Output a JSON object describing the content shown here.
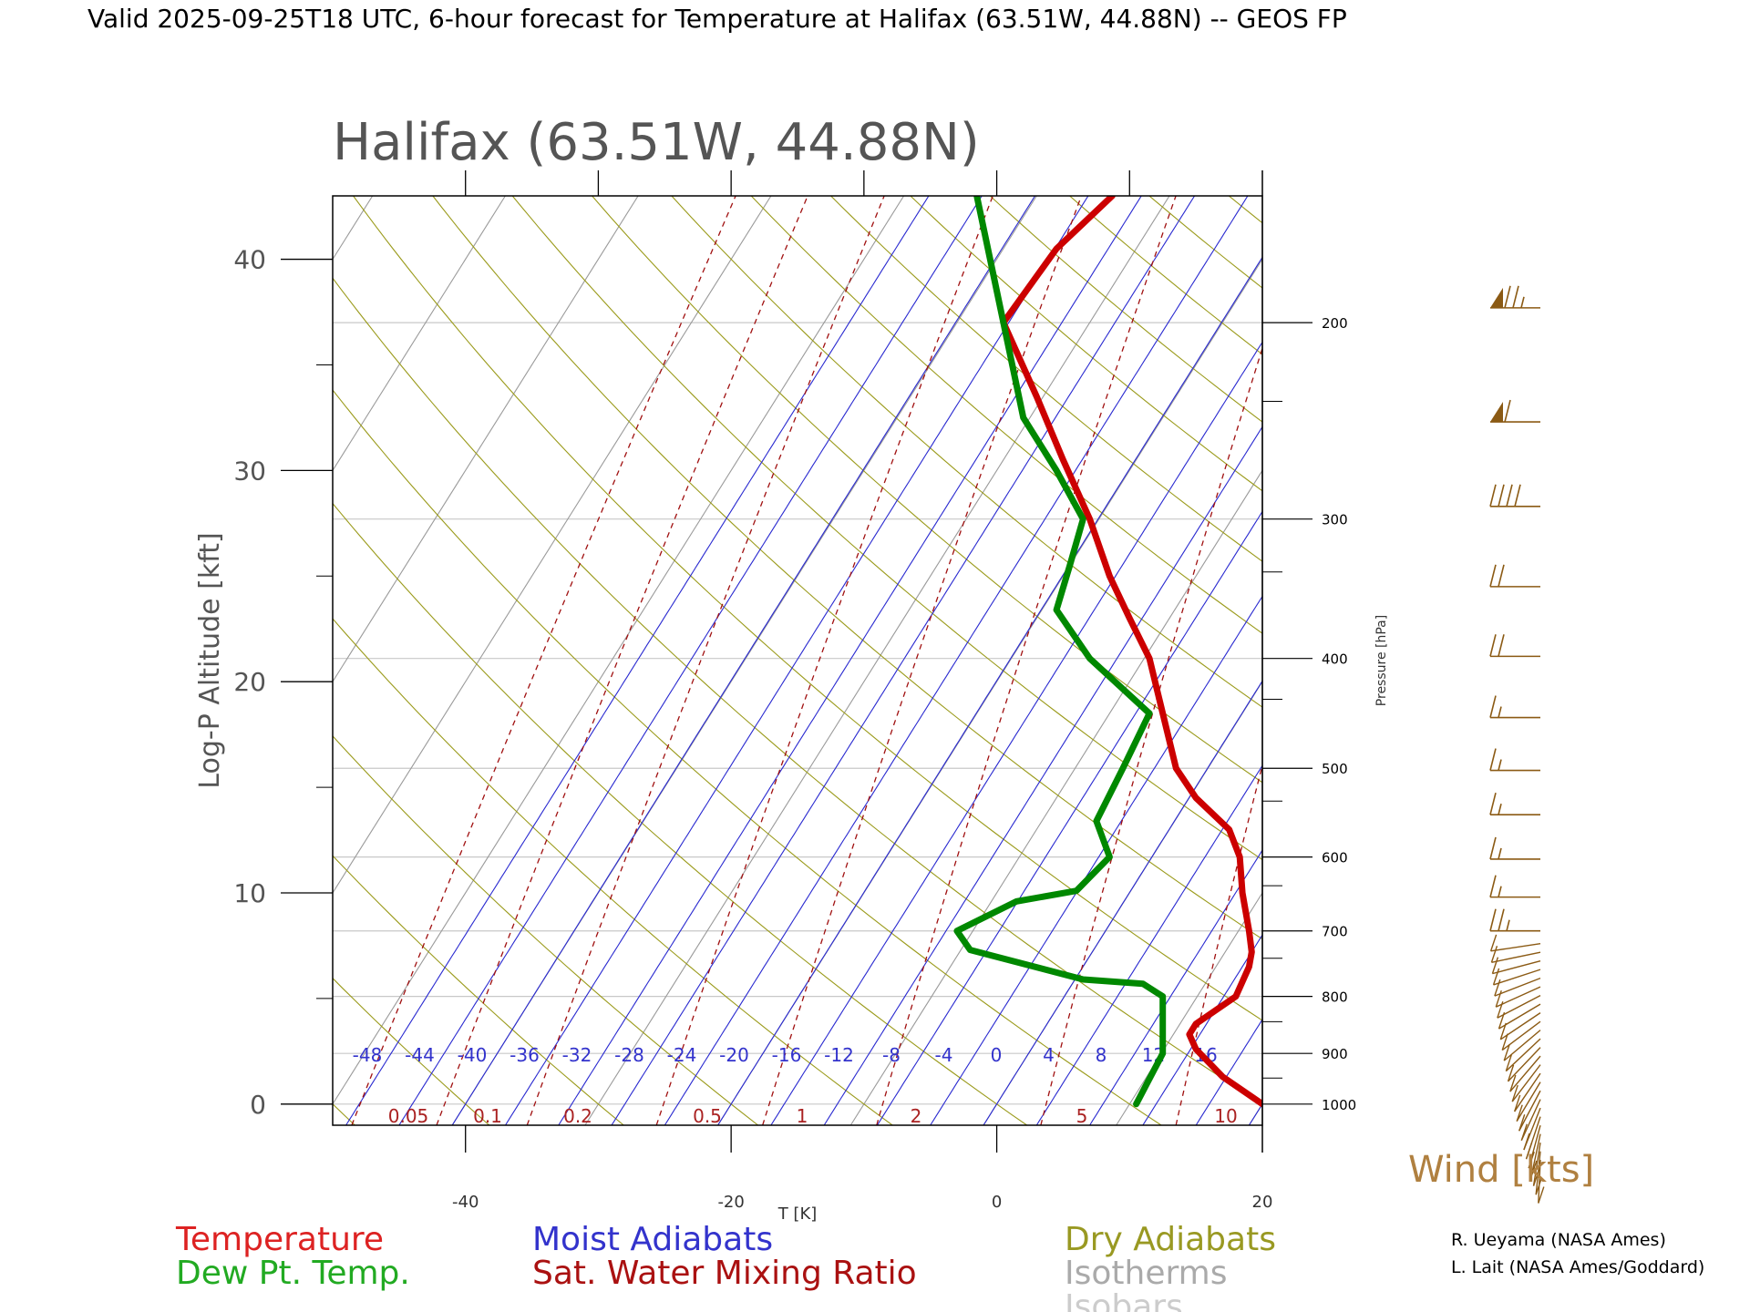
{
  "header": {
    "text": "Valid 2025-09-25T18 UTC, 6-hour forecast for Temperature at Halifax (63.51W, 44.88N) -- GEOS FP"
  },
  "chart_data": {
    "type": "line",
    "title": "Halifax (63.51W, 44.88N)",
    "xlabel": "T [K]",
    "ylabel": "Log-P Altitude [kft]",
    "y2label": "Pressure [hPa]",
    "xlim": [
      -50,
      20
    ],
    "ylim": [
      -1,
      43
    ],
    "x_ticks": [
      -40,
      -20,
      0,
      20
    ],
    "y_ticks": [
      0,
      10,
      20,
      30,
      40
    ],
    "pressure_ticks": [
      {
        "label": "200",
        "y": 37.0
      },
      {
        "label": "300",
        "y": 27.7
      },
      {
        "label": "400",
        "y": 21.1
      },
      {
        "label": "500",
        "y": 15.9
      },
      {
        "label": "600",
        "y": 11.7
      },
      {
        "label": "700",
        "y": 8.2
      },
      {
        "label": "800",
        "y": 5.1
      },
      {
        "label": "900",
        "y": 2.4
      },
      {
        "label": "1000",
        "y": 0.0
      }
    ],
    "moist_adiabat_labels": [
      "-48",
      "-44",
      "-40",
      "-36",
      "-32",
      "-28",
      "-24",
      "-20",
      "-16",
      "-12",
      "-8",
      "-4",
      "0",
      "4",
      "8",
      "12",
      "16"
    ],
    "mixing_ratio_labels": [
      "0.05",
      "0.1",
      "0.2",
      "0.5",
      "1",
      "2",
      "5",
      "10"
    ],
    "series": [
      {
        "name": "Temperature",
        "color": "#cc0000",
        "points": [
          [
            20,
            0.0
          ],
          [
            17,
            1.3
          ],
          [
            15,
            2.6
          ],
          [
            14.5,
            3.3
          ],
          [
            15,
            3.8
          ],
          [
            18,
            5.1
          ],
          [
            19,
            6.5
          ],
          [
            19.2,
            7.2
          ],
          [
            19,
            8.2
          ],
          [
            18.5,
            10.0
          ],
          [
            18.3,
            11.7
          ],
          [
            17.5,
            13.0
          ],
          [
            15,
            14.5
          ],
          [
            13.5,
            15.9
          ],
          [
            12.5,
            18.5
          ],
          [
            11.5,
            21.1
          ],
          [
            10,
            23.0
          ],
          [
            8.5,
            25.0
          ],
          [
            7,
            27.7
          ],
          [
            5,
            30.5
          ],
          [
            3,
            33.5
          ],
          [
            0.5,
            37.0
          ],
          [
            4.5,
            40.5
          ],
          [
            8.7,
            43.0
          ]
        ]
      },
      {
        "name": "Dew Pt. Temp.",
        "color": "#008800",
        "points": [
          [
            10.5,
            0.0
          ],
          [
            11.5,
            1.2
          ],
          [
            12.5,
            2.4
          ],
          [
            12.5,
            3.5
          ],
          [
            12.5,
            5.1
          ],
          [
            11,
            5.7
          ],
          [
            6.5,
            5.9
          ],
          [
            -2,
            7.3
          ],
          [
            -3,
            8.2
          ],
          [
            1.5,
            9.6
          ],
          [
            6,
            10.1
          ],
          [
            8.5,
            11.7
          ],
          [
            7.5,
            13.4
          ],
          [
            9.5,
            15.9
          ],
          [
            11.5,
            18.5
          ],
          [
            7,
            21.1
          ],
          [
            4.5,
            23.4
          ],
          [
            5.5,
            25.5
          ],
          [
            6.5,
            27.7
          ],
          [
            4.5,
            30.0
          ],
          [
            2,
            32.5
          ],
          [
            0.5,
            37.0
          ],
          [
            -0.5,
            40.0
          ],
          [
            -1.5,
            43.0
          ]
        ]
      }
    ],
    "legend": {
      "left": [
        "Temperature",
        "Dew Pt. Temp."
      ],
      "middle": [
        "Moist Adiabats",
        "Sat. Water Mixing Ratio"
      ],
      "right": [
        "Dry Adiabats",
        "Isotherms",
        "Isobars"
      ],
      "colors": {
        "Temperature": "#dd2222",
        "Dew Pt. Temp.": "#22aa22",
        "Moist Adiabats": "#3333cc",
        "Sat. Water Mixing Ratio": "#aa1111",
        "Dry Adiabats": "#999922",
        "Isotherms": "#aaaaaa",
        "Isobars": "#cccccc"
      }
    },
    "wind": {
      "title": "Wind [kts]",
      "color": "#8b5a14",
      "barbs": [
        {
          "y": 37.7,
          "pennants": 1,
          "barbs": 2.5
        },
        {
          "y": 32.3,
          "pennants": 1,
          "barbs": 1
        },
        {
          "y": 28.3,
          "pennants": 0,
          "barbs": 4
        },
        {
          "y": 24.5,
          "pennants": 0,
          "barbs": 2
        },
        {
          "y": 21.2,
          "pennants": 0,
          "barbs": 2
        },
        {
          "y": 18.3,
          "pennants": 0,
          "barbs": 1.5
        },
        {
          "y": 15.8,
          "pennants": 0,
          "barbs": 1.5
        },
        {
          "y": 13.7,
          "pennants": 0,
          "barbs": 1.5
        },
        {
          "y": 11.6,
          "pennants": 0,
          "barbs": 1.5
        },
        {
          "y": 9.8,
          "pennants": 0,
          "barbs": 1.5
        },
        {
          "y": 8.2,
          "pennants": 0,
          "barbs": 2.5
        }
      ]
    },
    "credits": [
      "R. Ueyama (NASA Ames)",
      "L. Lait (NASA Ames/Goddard)"
    ]
  }
}
